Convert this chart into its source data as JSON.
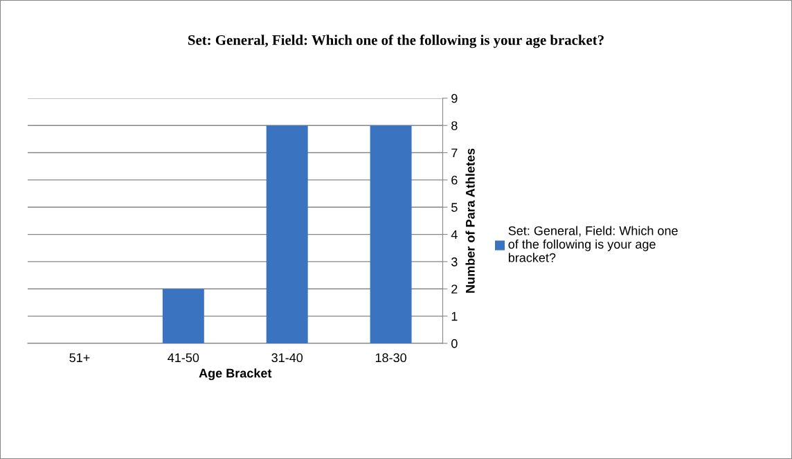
{
  "chart_data": {
    "type": "bar",
    "title": "Set: General, Field: Which one of the following is your age bracket?",
    "xlabel": "Age Bracket",
    "ylabel": "Number of Para Athletes",
    "categories": [
      "51+",
      "41-50",
      "31-40",
      "18-30"
    ],
    "series": [
      {
        "name": "Set: General, Field: Which one of the following is your age bracket?",
        "color": "#3a74c0",
        "values": [
          0,
          2,
          8,
          8
        ]
      }
    ],
    "ylim": [
      0,
      9
    ],
    "yticks": [
      0,
      1,
      2,
      3,
      4,
      5,
      6,
      7,
      8,
      9
    ],
    "grid": "y",
    "legend": "right"
  }
}
